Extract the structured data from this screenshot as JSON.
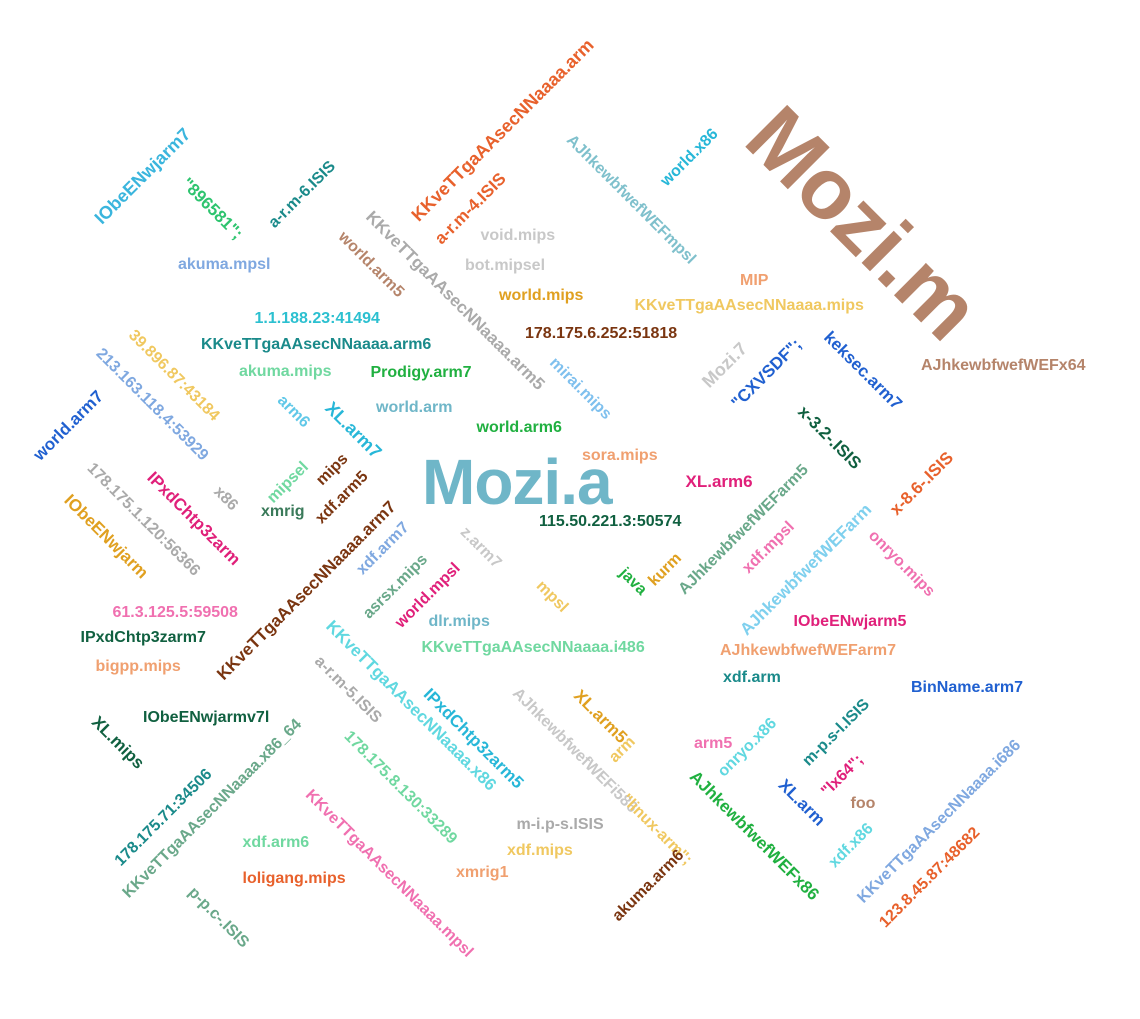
{
  "words": [
    {
      "text": "Mozi.m",
      "color": "#b5846a"
    },
    {
      "text": "Mozi.a",
      "color": "#6fb6c8"
    },
    {
      "text": "KKveTTgaAAsecNNaaaa.arm",
      "color": "#e8612c"
    },
    {
      "text": "AJhkewbfwefWEFmpsl",
      "color": "#7fc0cc"
    },
    {
      "text": "world.x86",
      "color": "#27b7d8"
    },
    {
      "text": "IObeENwjarm7",
      "color": "#3ab5dd"
    },
    {
      "text": "\"896581\";",
      "color": "#2ec46f"
    },
    {
      "text": "a-r.m-6.ISIS",
      "color": "#1a8a8a"
    },
    {
      "text": "a-r.m-4.ISIS",
      "color": "#e8612c"
    },
    {
      "text": "KKveTTgaAAsecNNaaaa.arm5",
      "color": "#aaaaaa"
    },
    {
      "text": "world.arm5",
      "color": "#b5846a"
    },
    {
      "text": "void.mips",
      "color": "#c8c8c8"
    },
    {
      "text": "bot.mipsel",
      "color": "#c8c8c8"
    },
    {
      "text": "akuma.mpsl",
      "color": "#7fa8e0"
    },
    {
      "text": "world.mips",
      "color": "#e0a020"
    },
    {
      "text": "MIP",
      "color": "#f0a070"
    },
    {
      "text": "KKveTTgaAAsecNNaaaa.mips",
      "color": "#f0c860"
    },
    {
      "text": "1.1.188.23:41494",
      "color": "#2cc0d0"
    },
    {
      "text": "178.175.6.252:51818",
      "color": "#7a3510"
    },
    {
      "text": "KKveTTgaAAsecNNaaaa.arm6",
      "color": "#1a8a8a"
    },
    {
      "text": "Mozi.7",
      "color": "#c8c8c8"
    },
    {
      "text": "\"CXVSDF\";",
      "color": "#2060d0"
    },
    {
      "text": "keksec.arm7",
      "color": "#2060d0"
    },
    {
      "text": "AJhkewbfwefWEFx64",
      "color": "#b5846a"
    },
    {
      "text": "39.896.87:43184",
      "color": "#f0c860"
    },
    {
      "text": "akuma.mips",
      "color": "#70d8a0"
    },
    {
      "text": "Prodigy.arm7",
      "color": "#20b040"
    },
    {
      "text": "mirai.mips",
      "color": "#7fc0ee"
    },
    {
      "text": "213.163.118.4:53929",
      "color": "#7fa8e0"
    },
    {
      "text": "world.arm7",
      "color": "#2060d0"
    },
    {
      "text": "arm6",
      "color": "#60c8e8"
    },
    {
      "text": "XL.arm7",
      "color": "#27b7d8"
    },
    {
      "text": "world.arm",
      "color": "#6fb6c8"
    },
    {
      "text": "world.arm6",
      "color": "#20b040"
    },
    {
      "text": "x-3.2-.ISIS",
      "color": "#106040"
    },
    {
      "text": "x-8.6-.ISIS",
      "color": "#e8612c"
    },
    {
      "text": "sora.mips",
      "color": "#f0a070"
    },
    {
      "text": "XL.arm6",
      "color": "#e0207a"
    },
    {
      "text": "AJhkewbfwefWEFarm5",
      "color": "#6aa88a"
    },
    {
      "text": "178.175.1.120:56366",
      "color": "#aaaaaa"
    },
    {
      "text": "IPxdChtp3zarm",
      "color": "#e0207a"
    },
    {
      "text": "x86",
      "color": "#aaaaaa"
    },
    {
      "text": "mipsel",
      "color": "#70d8a0"
    },
    {
      "text": "mips",
      "color": "#7a3510"
    },
    {
      "text": "xmrig",
      "color": "#3a7a5a"
    },
    {
      "text": "xdf.arm5",
      "color": "#7a3510"
    },
    {
      "text": "IObeENwjarm",
      "color": "#e0a020"
    },
    {
      "text": "KKveTTgaAAsecNNaaaa.arm7",
      "color": "#7a3510"
    },
    {
      "text": "xdf.arm7",
      "color": "#7fa8e0"
    },
    {
      "text": "115.50.221.3:50574",
      "color": "#106040"
    },
    {
      "text": "z.arm7",
      "color": "#c8c8c8"
    },
    {
      "text": "AJhkewbfwefWEFarm",
      "color": "#7fd0ee"
    },
    {
      "text": "xdf.mpsl",
      "color": "#f070b0"
    },
    {
      "text": "onryo.mips",
      "color": "#f070b0"
    },
    {
      "text": "asrsx.mips",
      "color": "#6aa88a"
    },
    {
      "text": "world.mpsl",
      "color": "#e0207a"
    },
    {
      "text": "java",
      "color": "#20b040"
    },
    {
      "text": "kurm",
      "color": "#e0a020"
    },
    {
      "text": "mpsl",
      "color": "#f0c860"
    },
    {
      "text": "61.3.125.5:59508",
      "color": "#f070b0"
    },
    {
      "text": "dlr.mips",
      "color": "#6fb6c8"
    },
    {
      "text": "IPxdChtp3zarm7",
      "color": "#106040"
    },
    {
      "text": "KKveTTgaAAsecNNaaaa.i486",
      "color": "#70d8a0"
    },
    {
      "text": "IObeENwjarm5",
      "color": "#e0207a"
    },
    {
      "text": "bigpp.mips",
      "color": "#f0a070"
    },
    {
      "text": "AJhkewbfwefWEFarm7",
      "color": "#f0a070"
    },
    {
      "text": "KKveTTgaAAsecNNaaaa.x86",
      "color": "#60d8e0"
    },
    {
      "text": "xdf.arm",
      "color": "#1a8a8a"
    },
    {
      "text": "a-r.m-5.ISIS",
      "color": "#aaaaaa"
    },
    {
      "text": "BinName.arm7",
      "color": "#2060d0"
    },
    {
      "text": "IPxdChtp3zarm5",
      "color": "#27b7d8"
    },
    {
      "text": "AJhkewbfwefWEFi586",
      "color": "#c8c8c8"
    },
    {
      "text": "XL.arm5",
      "color": "#e0a020"
    },
    {
      "text": "IObeENwjarmv7l",
      "color": "#106040"
    },
    {
      "text": "XL.mips",
      "color": "#106040"
    },
    {
      "text": "m-p.s-l.ISIS",
      "color": "#1a8a8a"
    },
    {
      "text": "arm",
      "color": "#f0c860"
    },
    {
      "text": "arm5",
      "color": "#f070b0"
    },
    {
      "text": "onryo.x86",
      "color": "#60d8e0"
    },
    {
      "text": "KKveTTgaAAsecNNaaaa.x86_64",
      "color": "#6aa88a"
    },
    {
      "text": "178.175.8.130:33289",
      "color": "#70d8a0"
    },
    {
      "text": "AJhkewbfwefWEFx86",
      "color": "#20b040"
    },
    {
      "text": "XL.arm",
      "color": "#2060d0"
    },
    {
      "text": "\"lx64\";",
      "color": "#e0207a"
    },
    {
      "text": "KKveTTgaAAsecNNaaaa.i686",
      "color": "#7fa8e0"
    },
    {
      "text": "178.175.71:34506",
      "color": "#1a8a8a"
    },
    {
      "text": "foo",
      "color": "#b5846a"
    },
    {
      "text": "KKveTTgaAAsecNNaaaa.mpsl",
      "color": "#f070b0"
    },
    {
      "text": "xdf.arm6",
      "color": "#70d8a0"
    },
    {
      "text": "m-i.p-s.ISIS",
      "color": "#aaaaaa"
    },
    {
      "text": "xdf.mips",
      "color": "#f0c860"
    },
    {
      "text": "\"linux-arm\";",
      "color": "#f0c860"
    },
    {
      "text": "xdf.x86",
      "color": "#60d8e0"
    },
    {
      "text": "loligang.mips",
      "color": "#e8612c"
    },
    {
      "text": "xmrig1",
      "color": "#f0a070"
    },
    {
      "text": "123.8.45.87:48682",
      "color": "#e8612c"
    },
    {
      "text": "p-p.c-.ISIS",
      "color": "#6aa88a"
    },
    {
      "text": "akuma.arm6",
      "color": "#7a3510"
    }
  ]
}
